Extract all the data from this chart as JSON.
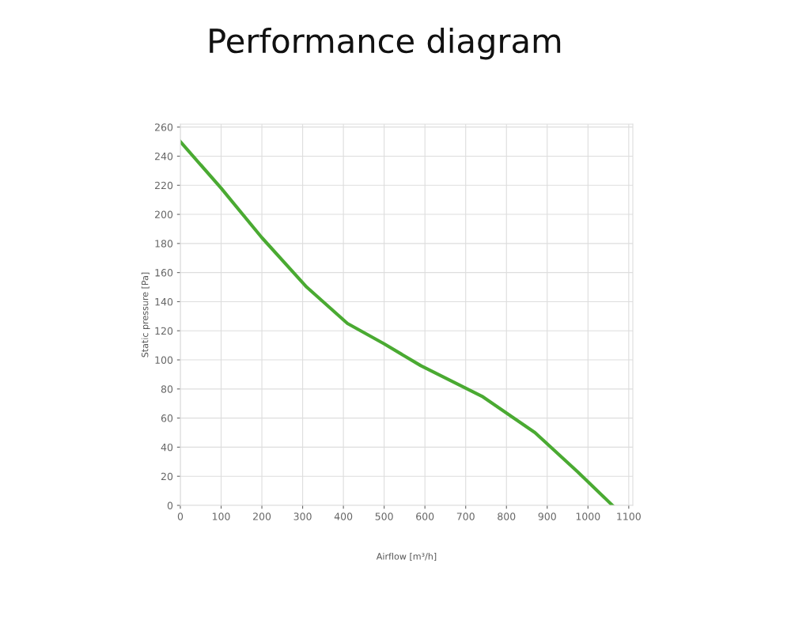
{
  "chart_data": {
    "type": "line",
    "title": "Performance diagram",
    "xlabel": "Airflow [m³/h]",
    "ylabel": "Static pressure [Pa]",
    "x": [
      0,
      100,
      200,
      310,
      410,
      500,
      590,
      740,
      870,
      975,
      1060
    ],
    "series": [
      {
        "color": "#4aaa32",
        "values": [
          250,
          218,
          184,
          150,
          125,
          111,
          96,
          75,
          50,
          23,
          0
        ]
      }
    ],
    "xlim": [
      0,
      1110
    ],
    "ylim": [
      0,
      262
    ],
    "xticks": [
      0,
      100,
      200,
      300,
      400,
      500,
      600,
      700,
      800,
      900,
      1000,
      1100
    ],
    "yticks": [
      0,
      20,
      40,
      60,
      80,
      100,
      120,
      140,
      160,
      180,
      200,
      220,
      240,
      260
    ],
    "grid": true,
    "legend": false,
    "marker": "none",
    "line_style": "solid"
  }
}
